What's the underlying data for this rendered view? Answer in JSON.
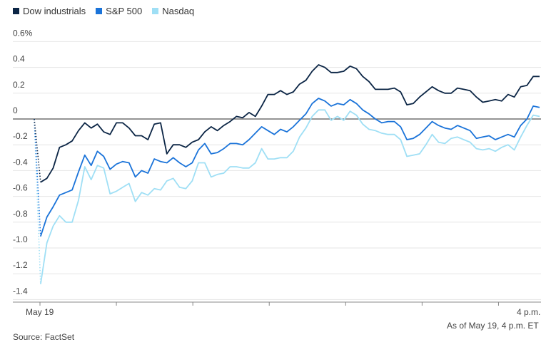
{
  "chart_data": {
    "type": "line",
    "title": "",
    "xlabel": "",
    "ylabel": "",
    "x_start_label": "May 19",
    "x_end_label": "4 p.m.",
    "y_unit": "%",
    "ylim": [
      -1.4,
      0.7
    ],
    "y_ticks": [
      0.6,
      0.4,
      0.2,
      0,
      -0.2,
      -0.4,
      -0.6,
      -0.8,
      -1.0,
      -1.2,
      -1.4
    ],
    "y_tick_labels": [
      "0.6%",
      "0.4",
      "0.2",
      "0",
      "-0.2",
      "-0.4",
      "-0.6",
      "-0.8",
      "-1.0",
      "-1.2",
      "-1.4"
    ],
    "grid": true,
    "legend_position": "top-left",
    "series": [
      {
        "name": "Dow industrials",
        "color": "#0b2545",
        "values": [
          0,
          -0.49,
          -0.46,
          -0.38,
          -0.22,
          -0.2,
          -0.17,
          -0.09,
          -0.03,
          -0.07,
          -0.04,
          -0.1,
          -0.12,
          -0.03,
          -0.03,
          -0.07,
          -0.13,
          -0.13,
          -0.16,
          -0.04,
          -0.03,
          -0.27,
          -0.2,
          -0.2,
          -0.22,
          -0.18,
          -0.16,
          -0.1,
          -0.06,
          -0.09,
          -0.05,
          -0.02,
          0.02,
          0.01,
          0.05,
          0.02,
          0.1,
          0.19,
          0.19,
          0.22,
          0.19,
          0.21,
          0.27,
          0.3,
          0.37,
          0.42,
          0.4,
          0.36,
          0.36,
          0.37,
          0.41,
          0.39,
          0.33,
          0.29,
          0.23,
          0.23,
          0.23,
          0.24,
          0.21,
          0.11,
          0.12,
          0.17,
          0.21,
          0.25,
          0.22,
          0.2,
          0.2,
          0.24,
          0.23,
          0.22,
          0.17,
          0.13,
          0.14,
          0.15,
          0.14,
          0.19,
          0.17,
          0.25,
          0.26,
          0.33,
          0.33
        ]
      },
      {
        "name": "S&P 500",
        "color": "#1a73d9",
        "values": [
          0,
          -0.91,
          -0.76,
          -0.68,
          -0.59,
          -0.57,
          -0.55,
          -0.41,
          -0.28,
          -0.36,
          -0.25,
          -0.29,
          -0.39,
          -0.35,
          -0.33,
          -0.34,
          -0.45,
          -0.4,
          -0.42,
          -0.31,
          -0.33,
          -0.34,
          -0.3,
          -0.34,
          -0.37,
          -0.34,
          -0.24,
          -0.19,
          -0.27,
          -0.26,
          -0.23,
          -0.19,
          -0.19,
          -0.2,
          -0.16,
          -0.11,
          -0.06,
          -0.09,
          -0.12,
          -0.08,
          -0.1,
          -0.06,
          -0.01,
          0.04,
          0.12,
          0.16,
          0.14,
          0.1,
          0.12,
          0.11,
          0.15,
          0.12,
          0.07,
          0.04,
          0.0,
          -0.03,
          -0.02,
          -0.02,
          -0.06,
          -0.16,
          -0.15,
          -0.12,
          -0.07,
          -0.02,
          -0.05,
          -0.07,
          -0.08,
          -0.05,
          -0.07,
          -0.09,
          -0.15,
          -0.14,
          -0.13,
          -0.16,
          -0.14,
          -0.12,
          -0.14,
          -0.05,
          0.0,
          0.1,
          0.09
        ]
      },
      {
        "name": "Nasdaq",
        "color": "#9fdff5",
        "values": [
          0,
          -1.28,
          -0.96,
          -0.83,
          -0.75,
          -0.8,
          -0.8,
          -0.63,
          -0.37,
          -0.47,
          -0.36,
          -0.38,
          -0.58,
          -0.56,
          -0.53,
          -0.5,
          -0.64,
          -0.57,
          -0.59,
          -0.54,
          -0.55,
          -0.48,
          -0.46,
          -0.53,
          -0.54,
          -0.48,
          -0.34,
          -0.34,
          -0.45,
          -0.43,
          -0.42,
          -0.37,
          -0.37,
          -0.38,
          -0.38,
          -0.34,
          -0.23,
          -0.31,
          -0.31,
          -0.3,
          -0.3,
          -0.25,
          -0.14,
          -0.07,
          0.02,
          0.07,
          0.07,
          -0.01,
          0.02,
          -0.01,
          0.06,
          0.03,
          -0.04,
          -0.08,
          -0.09,
          -0.11,
          -0.12,
          -0.12,
          -0.16,
          -0.29,
          -0.28,
          -0.27,
          -0.2,
          -0.12,
          -0.18,
          -0.19,
          -0.15,
          -0.14,
          -0.16,
          -0.18,
          -0.23,
          -0.24,
          -0.23,
          -0.25,
          -0.22,
          -0.2,
          -0.24,
          -0.14,
          -0.05,
          0.03,
          0.02
        ]
      }
    ]
  },
  "footer": {
    "source": "Source: FactSet",
    "as_of": "As of May 19, 4 p.m. ET"
  }
}
